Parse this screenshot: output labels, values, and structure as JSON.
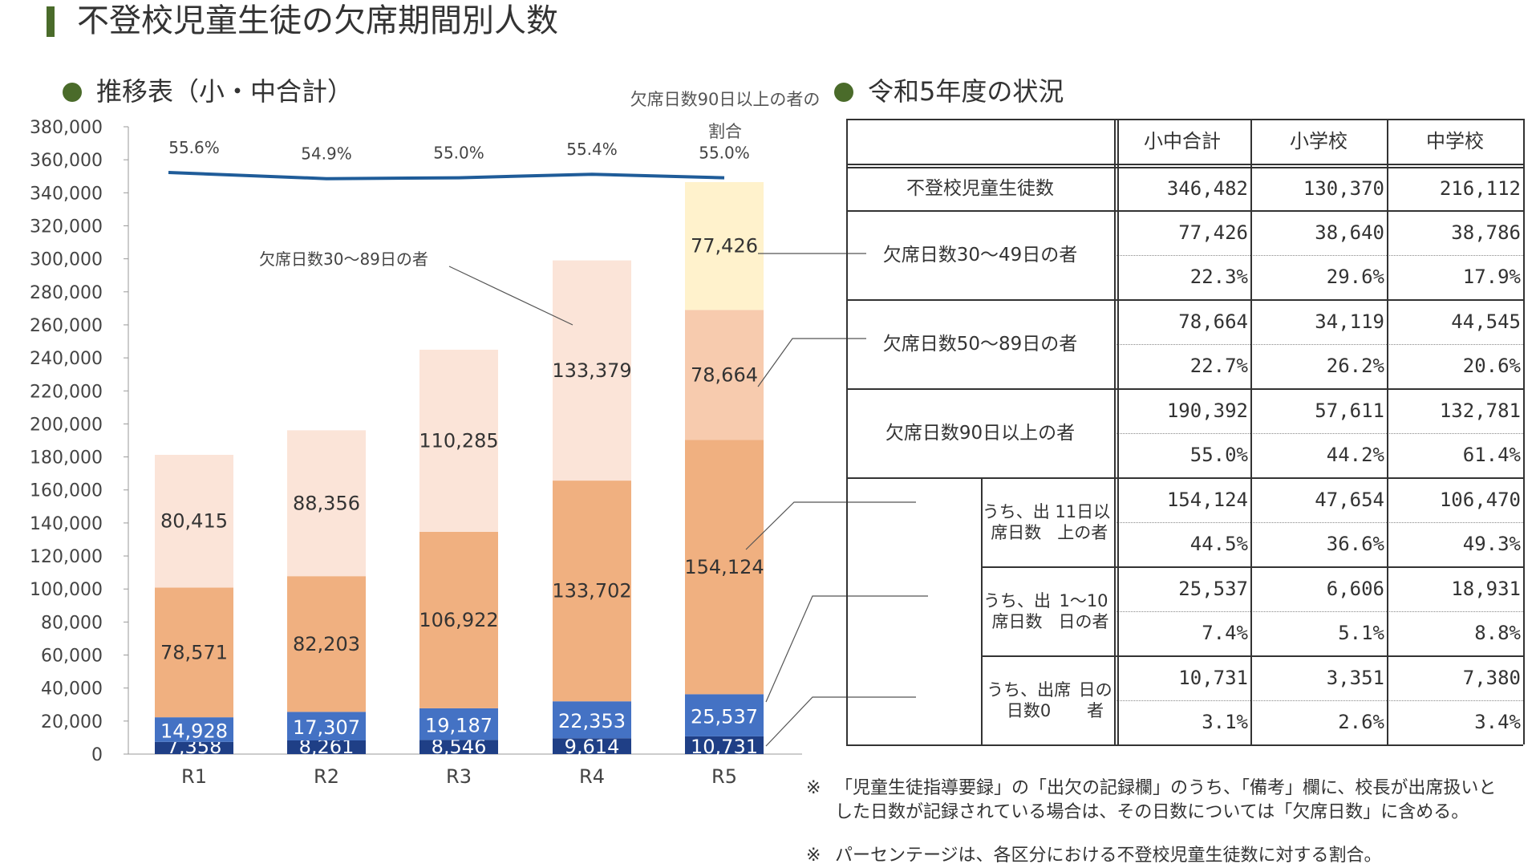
{
  "page_title": "不登校児童生徒の欠席期間別人数",
  "left_section_title": "推移表（小・中合計）",
  "right_section_title": "令和5年度の状況",
  "ratio_note": "欠席日数90日以上の者の割合",
  "colors": {
    "accent": "#4a6b2a",
    "c0": "#1f3f86",
    "c1_10": "#4472c4",
    "c11": "#f0b080",
    "c50_89": "#f7cbae",
    "c30_89": "#fbe4d8",
    "c30_49": "#fff2cc",
    "line": "#1f5c99"
  },
  "chart_data": {
    "type": "bar",
    "stacked": true,
    "categories": [
      "R1",
      "R2",
      "R3",
      "R4",
      "R5"
    ],
    "ylim": [
      0,
      380000
    ],
    "yticks": [
      "0",
      "20,000",
      "40,000",
      "60,000",
      "80,000",
      "100,000",
      "120,000",
      "140,000",
      "160,000",
      "180,000",
      "200,000",
      "220,000",
      "240,000",
      "260,000",
      "280,000",
      "300,000",
      "320,000",
      "340,000",
      "360,000",
      "380,000"
    ],
    "series": [
      {
        "name": "出席日数0日",
        "key": "c0",
        "values": [
          7358,
          8261,
          8546,
          9614,
          10731
        ],
        "labels": [
          "7,358",
          "8,261",
          "8,546",
          "9,614",
          "10,731"
        ]
      },
      {
        "name": "出席日数1～10日",
        "key": "c1_10",
        "values": [
          14928,
          17307,
          19187,
          22353,
          25537
        ],
        "labels": [
          "14,928",
          "17,307",
          "19,187",
          "22,353",
          "25,537"
        ]
      },
      {
        "name": "出席日数11日以上",
        "key": "c11",
        "values": [
          78571,
          82203,
          106922,
          133702,
          154124
        ],
        "labels": [
          "78,571",
          "82,203",
          "106,922",
          "133,702",
          "154,124"
        ]
      },
      {
        "name": "欠席日数50～89日",
        "key": "c50_89",
        "values": [
          0,
          0,
          0,
          0,
          78664
        ],
        "labels": [
          "",
          "",
          "",
          "",
          "78,664"
        ]
      },
      {
        "name": "欠席日数30～89日",
        "key": "c30_89",
        "values": [
          80415,
          88356,
          110285,
          133379,
          0
        ],
        "labels": [
          "80,415",
          "88,356",
          "110,285",
          "133,379",
          ""
        ]
      },
      {
        "name": "欠席日数30～49日",
        "key": "c30_49",
        "values": [
          0,
          0,
          0,
          0,
          77426
        ],
        "labels": [
          "",
          "",
          "",
          "",
          "77,426"
        ]
      }
    ],
    "line_series": {
      "name": "欠席日数90日以上の者の割合",
      "values": [
        55.6,
        54.9,
        55.0,
        55.4,
        55.0
      ],
      "labels": [
        "55.6%",
        "54.9%",
        "55.0%",
        "55.4%",
        "55.0%"
      ]
    },
    "annotation_30_89": "欠席日数30～89日の者"
  },
  "table": {
    "headers": [
      "小中合計",
      "小学校",
      "中学校"
    ],
    "total_row": {
      "label": "不登校児童生徒数",
      "values": [
        "346,482",
        "130,370",
        "216,112"
      ]
    },
    "groups": [
      {
        "label_lines": [
          "欠席日数",
          "30～49日の者"
        ],
        "counts": [
          "77,426",
          "38,640",
          "38,786"
        ],
        "pcts": [
          "22.3%",
          "29.6%",
          "17.9%"
        ]
      },
      {
        "label_lines": [
          "欠席日数",
          "50～89日の者"
        ],
        "counts": [
          "78,664",
          "34,119",
          "44,545"
        ],
        "pcts": [
          "22.7%",
          "26.2%",
          "20.6%"
        ]
      },
      {
        "label_lines": [
          "欠席日数90日以上の者"
        ],
        "counts": [
          "190,392",
          "57,611",
          "132,781"
        ],
        "pcts": [
          "55.0%",
          "44.2%",
          "61.4%"
        ]
      },
      {
        "label_lines": [
          "うち、出席日数",
          "11日以上の者"
        ],
        "counts": [
          "154,124",
          "47,654",
          "106,470"
        ],
        "pcts": [
          "44.5%",
          "36.6%",
          "49.3%"
        ]
      },
      {
        "label_lines": [
          "うち、出席日数",
          "1～10日の者"
        ],
        "counts": [
          "25,537",
          "6,606",
          "18,931"
        ],
        "pcts": [
          "7.4%",
          "5.1%",
          "8.8%"
        ]
      },
      {
        "label_lines": [
          "うち、出席日数0",
          "日の者"
        ],
        "counts": [
          "10,731",
          "3,351",
          "7,380"
        ],
        "pcts": [
          "3.1%",
          "2.6%",
          "3.4%"
        ]
      }
    ]
  },
  "notes": [
    {
      "mark": "※",
      "text": "「児童生徒指導要録」の「出欠の記録欄」のうち、「備考」欄に、校長が出席扱いとした日数が記録されている場合は、その日数については「欠席日数」に含める。"
    },
    {
      "mark": "※",
      "text": "パーセンテージは、各区分における不登校児童生徒数に対する割合。"
    }
  ]
}
